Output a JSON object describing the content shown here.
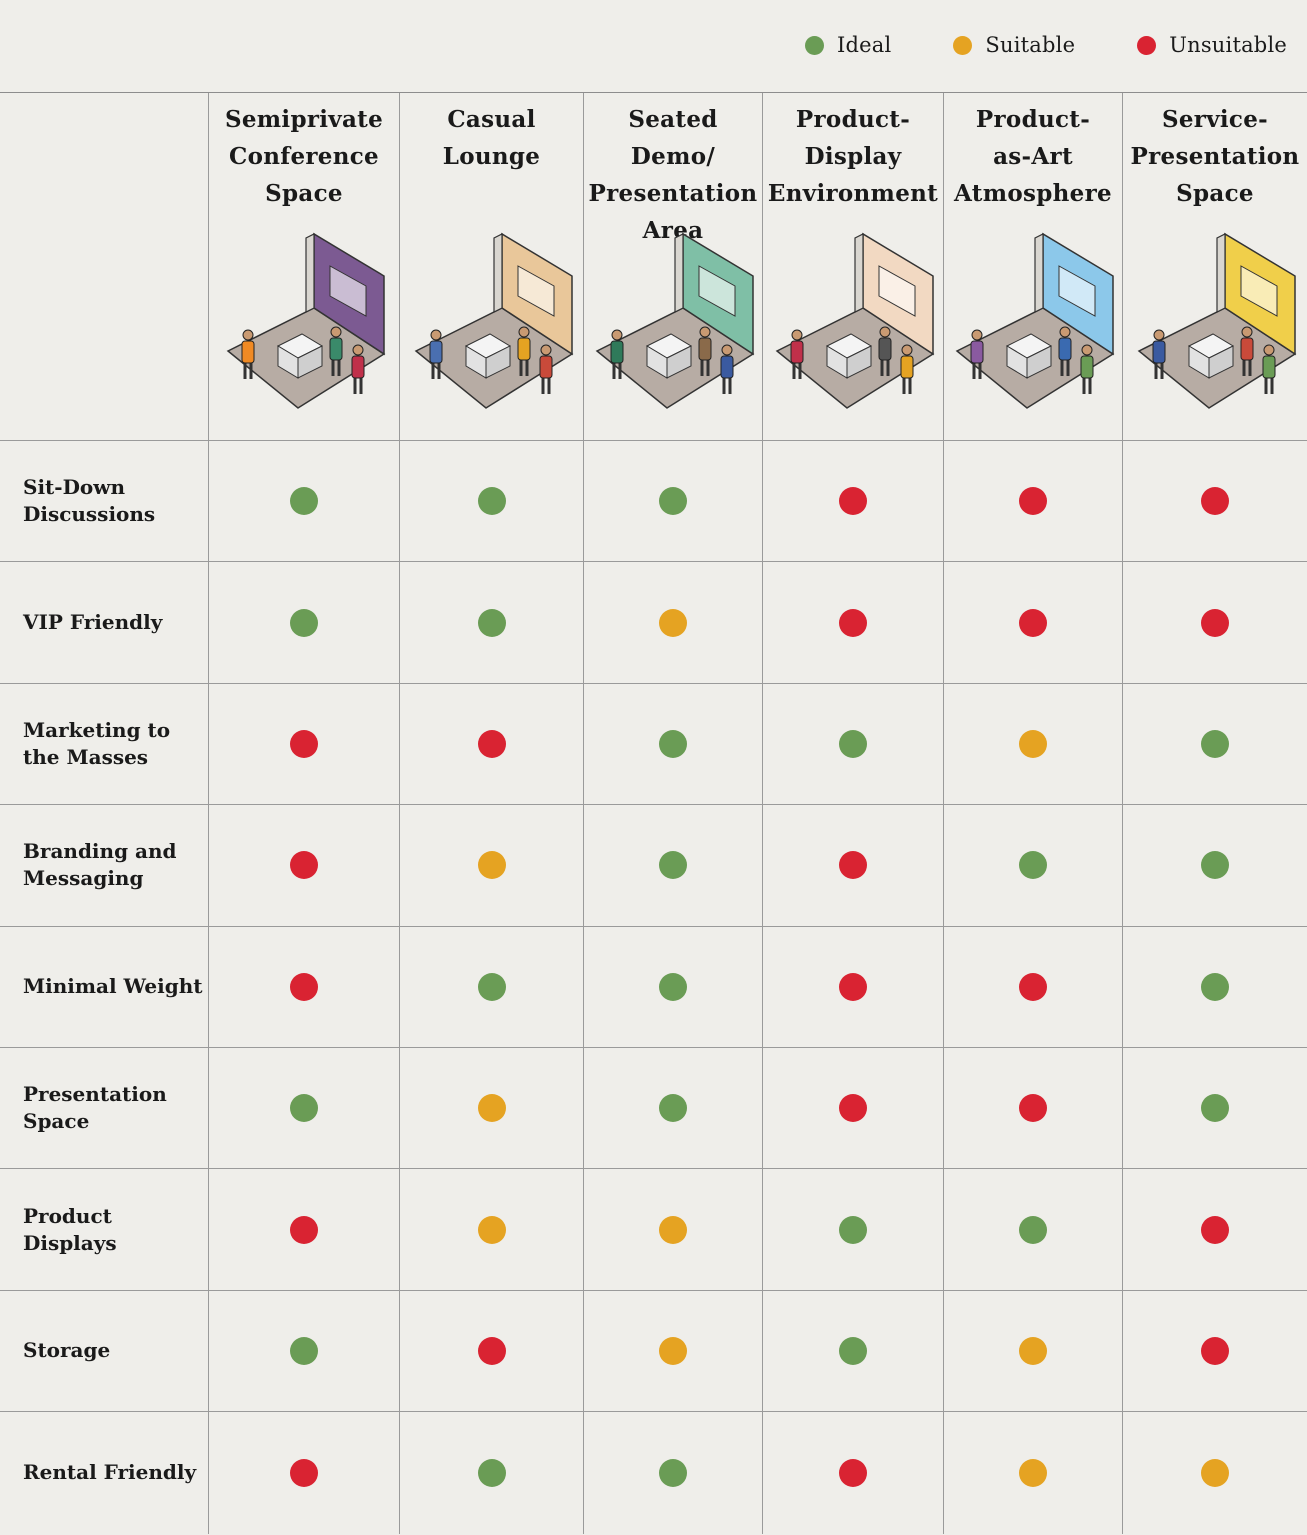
{
  "legend": [
    {
      "label": "Ideal",
      "color": "#6a9c55"
    },
    {
      "label": "Suitable",
      "color": "#e5a322"
    },
    {
      "label": "Unsuitable",
      "color": "#d92332"
    }
  ],
  "columns": [
    {
      "title": "Semiprivate\nConference\nSpace",
      "illustration": "conference-booth-illustration",
      "wall_color": "#7c5a92"
    },
    {
      "title": "Casual\nLounge",
      "illustration": "lounge-booth-illustration",
      "wall_color": "#e9c79a"
    },
    {
      "title": "Seated Demo/\nPresentation\nArea",
      "illustration": "demo-booth-illustration",
      "wall_color": "#7fbfa6"
    },
    {
      "title": "Product-\nDisplay\nEnvironment",
      "illustration": "display-booth-illustration",
      "wall_color": "#f2d9c2"
    },
    {
      "title": "Product-\nas-Art\nAtmosphere",
      "illustration": "art-booth-illustration",
      "wall_color": "#8cc8ea"
    },
    {
      "title": "Service-\nPresentation\nSpace",
      "illustration": "service-booth-illustration",
      "wall_color": "#f0cf4a"
    }
  ],
  "chart_data": {
    "type": "table",
    "columns": [
      "Semiprivate Conference Space",
      "Casual Lounge",
      "Seated Demo/ Presentation Area",
      "Product- Display Environment",
      "Product- as-Art Atmosphere",
      "Service- Presentation Space"
    ],
    "rows": [
      {
        "label": "Sit-Down\nDiscussions",
        "values": [
          "Ideal",
          "Ideal",
          "Ideal",
          "Unsuitable",
          "Unsuitable",
          "Unsuitable"
        ]
      },
      {
        "label": "VIP Friendly",
        "values": [
          "Ideal",
          "Ideal",
          "Suitable",
          "Unsuitable",
          "Unsuitable",
          "Unsuitable"
        ]
      },
      {
        "label": "Marketing to\nthe Masses",
        "values": [
          "Unsuitable",
          "Unsuitable",
          "Ideal",
          "Ideal",
          "Suitable",
          "Ideal"
        ]
      },
      {
        "label": "Branding and\nMessaging",
        "values": [
          "Unsuitable",
          "Suitable",
          "Ideal",
          "Unsuitable",
          "Ideal",
          "Ideal"
        ]
      },
      {
        "label": "Minimal Weight",
        "values": [
          "Unsuitable",
          "Ideal",
          "Ideal",
          "Unsuitable",
          "Unsuitable",
          "Ideal"
        ]
      },
      {
        "label": "Presentation\nSpace",
        "values": [
          "Ideal",
          "Suitable",
          "Ideal",
          "Unsuitable",
          "Unsuitable",
          "Ideal"
        ]
      },
      {
        "label": "Product Displays",
        "values": [
          "Unsuitable",
          "Suitable",
          "Suitable",
          "Ideal",
          "Ideal",
          "Unsuitable"
        ]
      },
      {
        "label": "Storage",
        "values": [
          "Ideal",
          "Unsuitable",
          "Suitable",
          "Ideal",
          "Suitable",
          "Unsuitable"
        ]
      },
      {
        "label": "Rental Friendly",
        "values": [
          "Unsuitable",
          "Ideal",
          "Ideal",
          "Unsuitable",
          "Suitable",
          "Suitable"
        ]
      }
    ]
  }
}
